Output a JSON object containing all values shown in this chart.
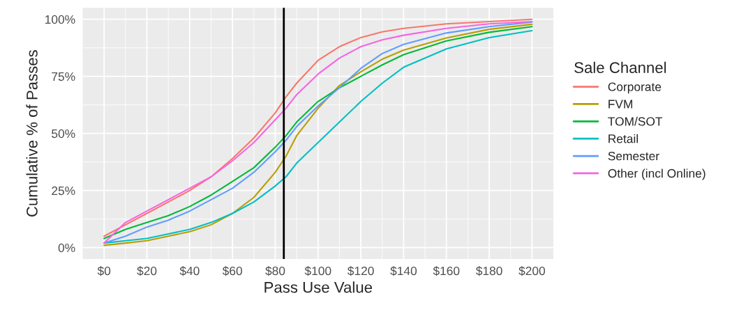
{
  "chart_data": {
    "type": "line",
    "xlabel": "Pass Use Value",
    "ylabel": "Cumulative % of Passes",
    "legend_title": "Sale Channel",
    "legend": "right",
    "grid": true,
    "x": [
      0,
      10,
      20,
      30,
      40,
      50,
      60,
      70,
      80,
      85,
      90,
      100,
      110,
      120,
      130,
      140,
      160,
      180,
      200
    ],
    "series": [
      {
        "name": "Corporate",
        "color": "#F8766D",
        "values": [
          5,
          10,
          15,
          20,
          25,
          31,
          39,
          48,
          59,
          66,
          72,
          82,
          88,
          92,
          94.5,
          96,
          98,
          99,
          100
        ]
      },
      {
        "name": "FVM",
        "color": "#B79F00",
        "values": [
          1,
          2,
          3,
          5,
          7,
          10,
          15,
          22,
          33,
          40,
          49,
          61,
          71,
          77,
          82.5,
          86.5,
          91.8,
          95.6,
          97.8
        ]
      },
      {
        "name": "TOM/SOT",
        "color": "#00BA38",
        "values": [
          4,
          8,
          11,
          14,
          18,
          23,
          29,
          35,
          44,
          49,
          55,
          64,
          70,
          75,
          80,
          84.5,
          90.5,
          94.3,
          96.8
        ]
      },
      {
        "name": "Retail",
        "color": "#00BFC4",
        "values": [
          2,
          3,
          4,
          6,
          8,
          11,
          15,
          20,
          27,
          31,
          37,
          46,
          55,
          64,
          72,
          79,
          87,
          92,
          95
        ]
      },
      {
        "name": "Semester",
        "color": "#619CFF",
        "values": [
          2,
          5,
          9,
          12,
          16,
          21,
          26,
          33,
          42,
          47,
          53,
          62,
          70,
          78.5,
          85,
          89,
          94,
          96.8,
          98.8
        ]
      },
      {
        "name": "Other (incl Online)",
        "color": "#F564E3",
        "values": [
          2,
          11,
          16,
          21,
          26,
          31,
          38,
          46,
          56,
          61,
          67,
          76,
          83,
          88,
          91,
          93,
          96,
          98,
          99
        ]
      }
    ],
    "ref_lines": [
      {
        "axis": "x",
        "value": 84,
        "color": "#000000"
      }
    ],
    "xlim": [
      -10,
      210
    ],
    "ylim": [
      -5,
      105
    ],
    "xticks": [
      {
        "value": 0,
        "label": "$0"
      },
      {
        "value": 20,
        "label": "$20"
      },
      {
        "value": 40,
        "label": "$40"
      },
      {
        "value": 60,
        "label": "$60"
      },
      {
        "value": 80,
        "label": "$80"
      },
      {
        "value": 100,
        "label": "$100"
      },
      {
        "value": 120,
        "label": "$120"
      },
      {
        "value": 140,
        "label": "$140"
      },
      {
        "value": 160,
        "label": "$160"
      },
      {
        "value": 180,
        "label": "$180"
      },
      {
        "value": 200,
        "label": "$200"
      }
    ],
    "yticks": [
      {
        "value": 0,
        "label": "0%"
      },
      {
        "value": 25,
        "label": "25%"
      },
      {
        "value": 50,
        "label": "50%"
      },
      {
        "value": 75,
        "label": "75%"
      },
      {
        "value": 100,
        "label": "100%"
      }
    ]
  }
}
